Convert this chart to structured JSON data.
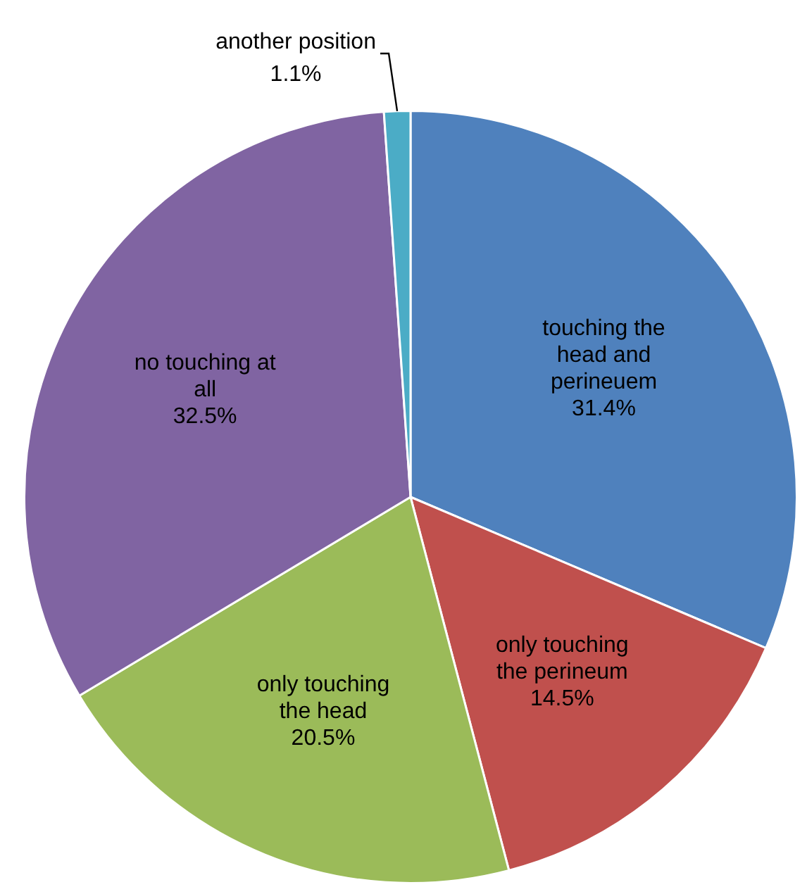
{
  "chart_data": {
    "type": "pie",
    "categories": [
      "touching the head and perineuem",
      "only touching the perineum",
      "only touching the head",
      "no touching at all",
      "another position"
    ],
    "values": [
      31.4,
      14.5,
      20.5,
      32.5,
      1.1
    ],
    "value_labels": [
      "31.4%",
      "14.5%",
      "20.5%",
      "32.5%",
      "1.1%"
    ],
    "colors": [
      "#4f81bd",
      "#c0504d",
      "#9bbb59",
      "#8064a2",
      "#4bacc6"
    ],
    "legend": false
  }
}
